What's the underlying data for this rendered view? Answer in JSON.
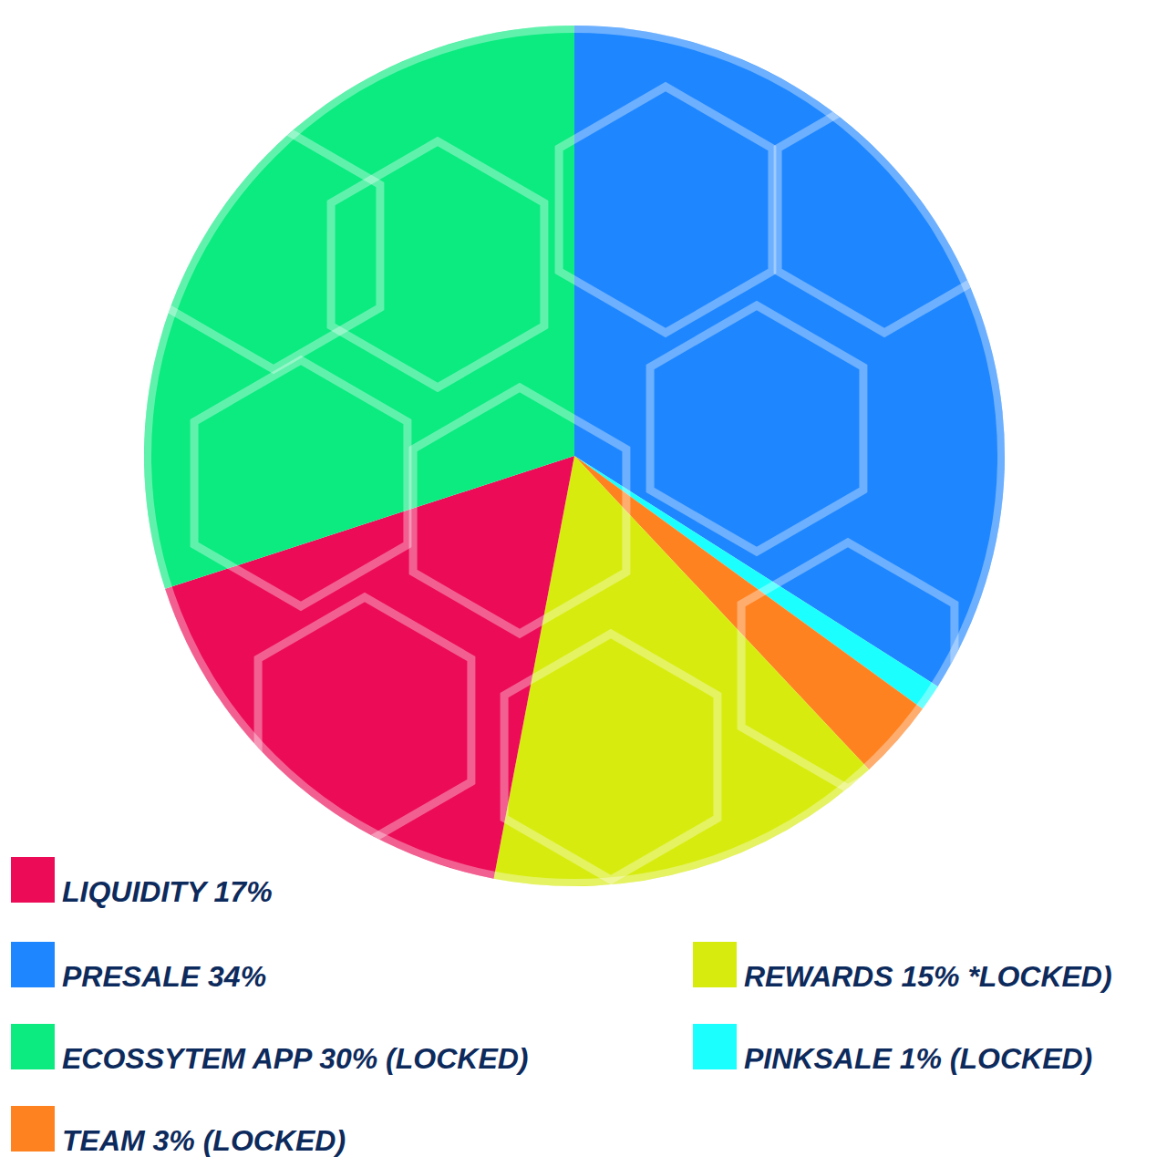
{
  "chart_data": {
    "type": "pie",
    "categories": [
      "PRESALE 34%",
      "PINKSALE 1% (LOCKED)",
      "TEAM 3% (LOCKED)",
      "REWARDS 15% *LOCKED)",
      "LIQUIDITY 17%",
      "ECOSSYTEM APP 30% (LOCKED)"
    ],
    "values": [
      34,
      1,
      3,
      15,
      17,
      30
    ],
    "colors": [
      "#1e86ff",
      "#1bffff",
      "#ff8221",
      "#d7ec0e",
      "#ec0b57",
      "#0beb80"
    ],
    "legend": "bottom"
  }
}
